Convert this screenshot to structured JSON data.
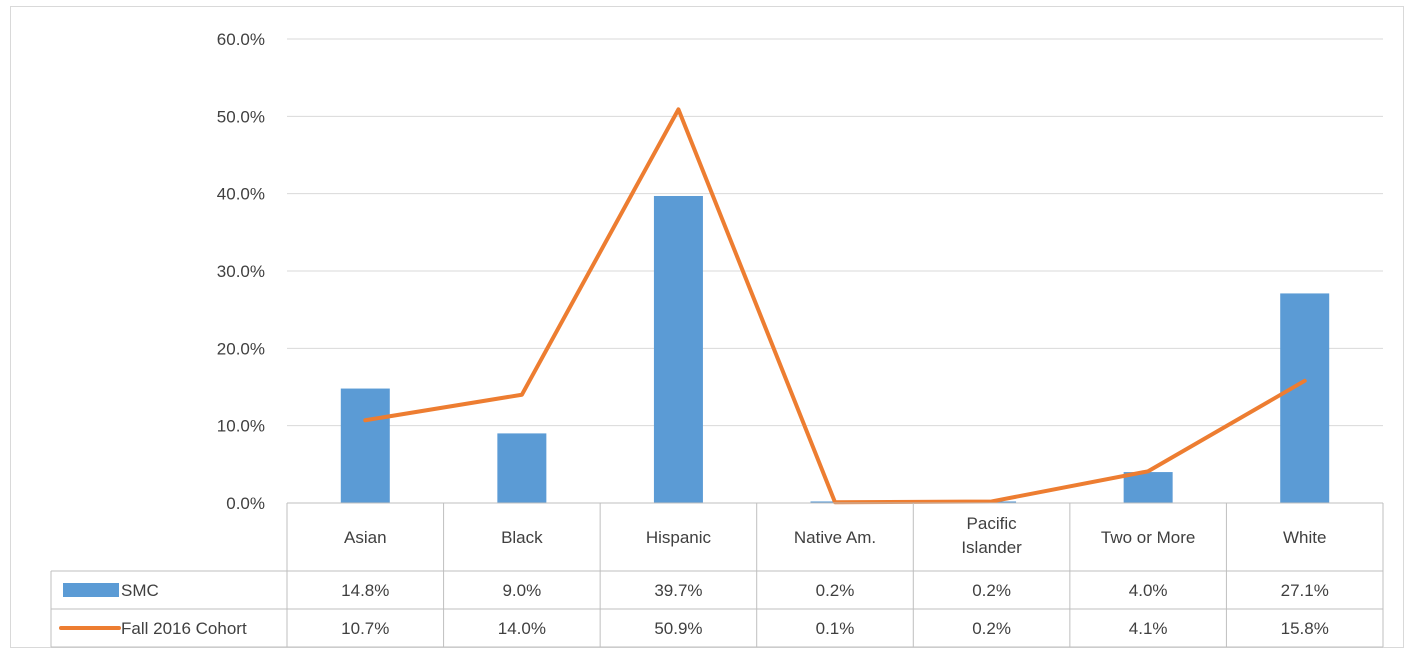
{
  "chart_data": {
    "type": "bar",
    "categories": [
      "Asian",
      "Black",
      "Hispanic",
      "Native Am.",
      "Pacific Islander",
      "Two or More",
      "White"
    ],
    "series": [
      {
        "name": "SMC",
        "type": "bar",
        "color": "#5b9bd5",
        "values": [
          14.8,
          9.0,
          39.7,
          0.2,
          0.2,
          4.0,
          27.1
        ],
        "labels": [
          "14.8%",
          "9.0%",
          "39.7%",
          "0.2%",
          "0.2%",
          "4.0%",
          "27.1%"
        ]
      },
      {
        "name": "Fall 2016 Cohort",
        "type": "line",
        "color": "#ed7d31",
        "values": [
          10.7,
          14.0,
          50.9,
          0.1,
          0.2,
          4.1,
          15.8
        ],
        "labels": [
          "10.7%",
          "14.0%",
          "50.9%",
          "0.1%",
          "0.2%",
          "4.1%",
          "15.8%"
        ]
      }
    ],
    "ylim": [
      0,
      60
    ],
    "yticks": [
      0,
      10,
      20,
      30,
      40,
      50,
      60
    ],
    "ytick_labels": [
      "0.0%",
      "10.0%",
      "20.0%",
      "30.0%",
      "40.0%",
      "50.0%",
      "60.0%"
    ],
    "grid": true,
    "data_table": true
  }
}
